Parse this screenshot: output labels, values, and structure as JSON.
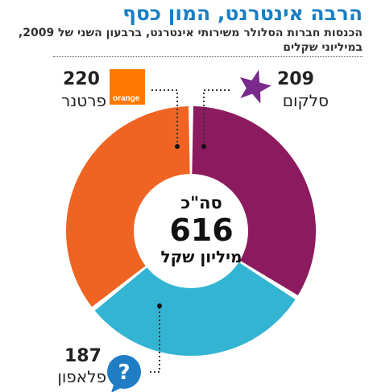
{
  "header": {
    "title": "הרבה אינטרנט, המון כסף",
    "subtitle": "הכנסות חברות הסלולר משירותי אינטרנט, ברבעון השני של 2009, במיליוני שקלים"
  },
  "center": {
    "line1": "סה\"כ",
    "total": "616",
    "line3": "מיליון שקל"
  },
  "logos": {
    "orange_text": "orange"
  },
  "colors": {
    "cellcom": "#8b1a5e",
    "pelephone": "#33b4d2",
    "partner": "#ef6422",
    "title": "#1a7fc2"
  },
  "chart_data": {
    "type": "pie",
    "variant": "donut",
    "total": 616,
    "unit": "מיליון שקל",
    "slices": [
      {
        "name": "סלקום",
        "value": 209,
        "value_label": "209",
        "color": "#8b1a5e"
      },
      {
        "name": "פלאפון",
        "value": 187,
        "value_label": "187",
        "color": "#33b4d2"
      },
      {
        "name": "פרטנר",
        "value": 220,
        "value_label": "220",
        "color": "#ef6422"
      }
    ]
  }
}
